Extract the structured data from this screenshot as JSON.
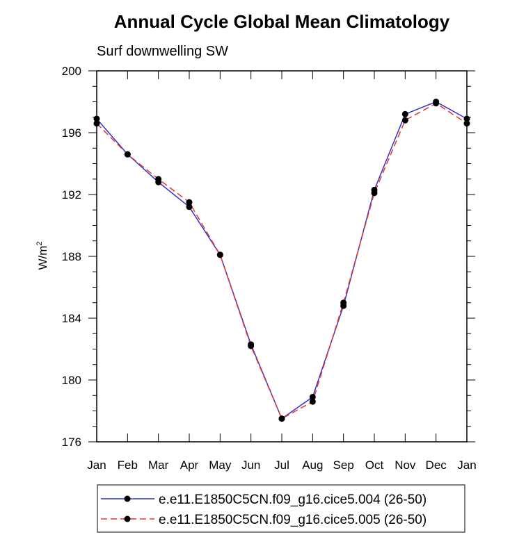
{
  "chart_data": {
    "type": "line",
    "title": "Annual Cycle Global Mean Climatology",
    "subtitle": "Surf downwelling SW",
    "ylabel": "W/m",
    "ylabel_superscript": "2",
    "xlabel": "",
    "categories": [
      "Jan",
      "Feb",
      "Mar",
      "Apr",
      "May",
      "Jun",
      "Jul",
      "Aug",
      "Sep",
      "Oct",
      "Nov",
      "Dec",
      "Jan"
    ],
    "ylim": [
      176,
      200
    ],
    "yticks": [
      176,
      180,
      184,
      188,
      192,
      196,
      200
    ],
    "ytick_labels": [
      "176",
      "180",
      "184",
      "188",
      "192",
      "196",
      "200"
    ],
    "series": [
      {
        "name": "e.e11.E1850C5CN.f09_g16.cice5.004 (26-50)",
        "color": "#3333cc",
        "dash": "solid",
        "values": [
          196.9,
          194.6,
          192.8,
          191.2,
          188.1,
          182.3,
          177.5,
          178.9,
          184.8,
          192.3,
          197.2,
          198.0,
          196.9
        ]
      },
      {
        "name": "e.e11.E1850C5CN.f09_g16.cice5.005 (26-50)",
        "color": "#e8342e",
        "dash": "dashed",
        "values": [
          196.6,
          194.6,
          193.0,
          191.5,
          188.1,
          182.2,
          177.5,
          178.6,
          185.0,
          192.1,
          196.8,
          197.9,
          196.6
        ]
      }
    ],
    "legend_position": "bottom-center",
    "marker": "circle",
    "marker_color": "#000000"
  }
}
